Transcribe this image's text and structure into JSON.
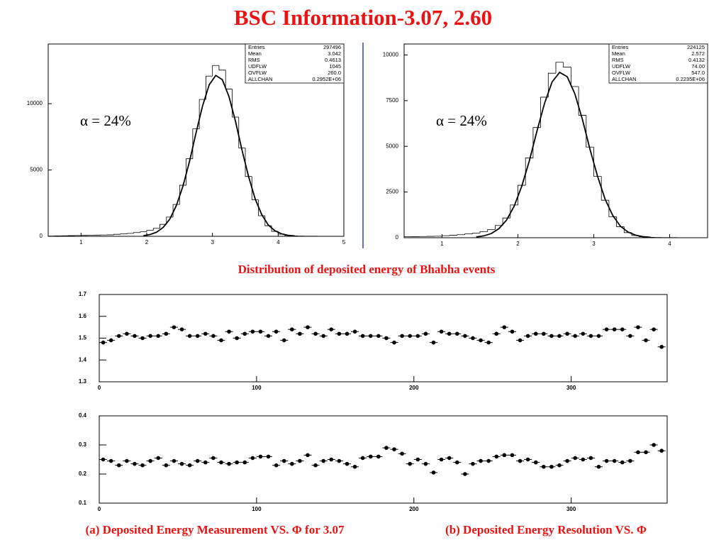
{
  "title": "BSC Information-3.07, 2.60",
  "captions": [
    "Distribution of deposited energy of Bhabha events",
    "(a) Deposited Energy Measurement VS. Φ for 3.07",
    "(b) Deposited Energy Resolution VS. Φ"
  ],
  "chart_data": [
    {
      "type": "histogram",
      "annotation": "α = 24%",
      "color": "#000000",
      "xlim": [
        0.5,
        5
      ],
      "xticks": [
        1,
        2,
        3,
        4,
        5
      ],
      "ylim": [
        0,
        14500
      ],
      "yticks": [
        0,
        5000,
        10000
      ],
      "bins": [
        0.5,
        0.6,
        0.7,
        0.8,
        0.9,
        1.0,
        1.1,
        1.2,
        1.3,
        1.4,
        1.5,
        1.6,
        1.7,
        1.8,
        1.9,
        2.0,
        2.1,
        2.2,
        2.3,
        2.4,
        2.5,
        2.6,
        2.7,
        2.8,
        2.9,
        3.0,
        3.1,
        3.2,
        3.3,
        3.4,
        3.5,
        3.6,
        3.7,
        3.8,
        3.9,
        4.0,
        4.1,
        4.2,
        4.3,
        4.4,
        4.5,
        4.6,
        4.7,
        4.8,
        4.9,
        5.0
      ],
      "counts": [
        20,
        30,
        40,
        50,
        60,
        70,
        80,
        90,
        100,
        110,
        150,
        180,
        220,
        280,
        340,
        450,
        600,
        900,
        1450,
        2400,
        3850,
        5850,
        8100,
        10320,
        12080,
        12880,
        12530,
        11100,
        8990,
        6660,
        4510,
        2750,
        1550,
        800,
        370,
        160,
        70,
        30,
        20,
        15,
        10,
        8,
        5,
        3,
        2
      ],
      "fit": {
        "x": [
          1.95,
          2.05,
          2.15,
          2.25,
          2.35,
          2.45,
          2.55,
          2.65,
          2.75,
          2.85,
          2.95,
          3.05,
          3.15,
          3.25,
          3.35,
          3.45,
          3.55,
          3.65,
          3.75,
          3.85,
          3.95,
          4.05,
          4.15,
          4.25
        ],
        "y": [
          55,
          135,
          310,
          670,
          1290,
          2310,
          3770,
          5630,
          7800,
          9840,
          11420,
          12130,
          11810,
          10560,
          8680,
          6490,
          4500,
          2820,
          1640,
          850,
          425,
          190,
          75,
          30
        ]
      },
      "stats": [
        {
          "label": "Entries",
          "value": "297496"
        },
        {
          "label": "Mean",
          "value": "3.042"
        },
        {
          "label": "RMS",
          "value": "0.4613"
        },
        {
          "label": "UDFLW",
          "value": "1045"
        },
        {
          "label": "OVFLW",
          "value": "260.0"
        },
        {
          "label": "ALLCHAN",
          "value": "0.2952E+06"
        }
      ]
    },
    {
      "type": "histogram",
      "annotation": "α = 24%",
      "color": "#000000",
      "xlim": [
        0.5,
        4.5
      ],
      "xticks": [
        1,
        2,
        3,
        4
      ],
      "ylim": [
        0,
        10600
      ],
      "yticks": [
        0,
        2500,
        5000,
        7500,
        10000
      ],
      "bins": [
        0.5,
        0.6,
        0.7,
        0.8,
        0.9,
        1.0,
        1.1,
        1.2,
        1.3,
        1.4,
        1.5,
        1.6,
        1.7,
        1.8,
        1.9,
        2.0,
        2.1,
        2.2,
        2.3,
        2.4,
        2.5,
        2.6,
        2.7,
        2.8,
        2.9,
        3.0,
        3.1,
        3.2,
        3.3,
        3.4,
        3.5,
        3.6,
        3.7,
        3.8,
        3.9,
        4.0,
        4.1,
        4.2,
        4.3,
        4.4,
        4.5
      ],
      "counts": [
        52,
        60,
        67,
        75,
        82,
        112,
        134,
        164,
        209,
        253,
        335,
        447,
        670,
        1080,
        1790,
        2870,
        4360,
        6030,
        7690,
        9000,
        9600,
        9330,
        8270,
        6700,
        4960,
        3360,
        2050,
        1150,
        600,
        280,
        120,
        52,
        22,
        15,
        11,
        8,
        6,
        4,
        2,
        1
      ],
      "fit": {
        "x": [
          1.45,
          1.55,
          1.65,
          1.75,
          1.85,
          1.95,
          2.05,
          2.15,
          2.25,
          2.35,
          2.45,
          2.55,
          2.65,
          2.75,
          2.85,
          2.95,
          3.05,
          3.15,
          3.25,
          3.35,
          3.45,
          3.55,
          3.65,
          3.75
        ],
        "y": [
          41,
          100,
          231,
          500,
          962,
          1720,
          2810,
          4200,
          5820,
          7340,
          8520,
          9050,
          8810,
          7880,
          6480,
          4840,
          3360,
          2100,
          1220,
          634,
          317,
          142,
          56,
          22
        ]
      },
      "stats": [
        {
          "label": "Entries",
          "value": "224125"
        },
        {
          "label": "Mean",
          "value": "2.572"
        },
        {
          "label": "RMS",
          "value": "0.4132"
        },
        {
          "label": "UDFLW",
          "value": "74.00"
        },
        {
          "label": "OVFLW",
          "value": "547.0"
        },
        {
          "label": "ALLCHAN",
          "value": "0.2235E+06"
        }
      ]
    },
    {
      "type": "scatter",
      "color": "#000000",
      "xlim": [
        0,
        361
      ],
      "xticks": [
        0,
        100,
        200,
        300
      ],
      "ylim": [
        1.3,
        1.7
      ],
      "yticks": [
        1.3,
        1.4,
        1.5,
        1.6,
        1.7
      ],
      "xerr": 2.5,
      "x": [
        2.5,
        7.5,
        12.5,
        17.5,
        22.5,
        27.5,
        32.5,
        37.5,
        42.5,
        47.5,
        52.5,
        57.5,
        62.5,
        67.5,
        72.5,
        77.5,
        82.5,
        87.5,
        92.5,
        97.5,
        102.5,
        107.5,
        112.5,
        117.5,
        122.5,
        127.5,
        132.5,
        137.5,
        142.5,
        147.5,
        152.5,
        157.5,
        162.5,
        167.5,
        172.5,
        177.5,
        182.5,
        187.5,
        192.5,
        197.5,
        202.5,
        207.5,
        212.5,
        217.5,
        222.5,
        227.5,
        232.5,
        237.5,
        242.5,
        247.5,
        252.5,
        257.5,
        262.5,
        267.5,
        272.5,
        277.5,
        282.5,
        287.5,
        292.5,
        297.5,
        302.5,
        307.5,
        312.5,
        317.5,
        322.5,
        327.5,
        332.5,
        337.5,
        342.5,
        347.5,
        352.5,
        357.5
      ],
      "values": [
        1.48,
        1.49,
        1.51,
        1.52,
        1.51,
        1.5,
        1.51,
        1.51,
        1.52,
        1.55,
        1.54,
        1.51,
        1.51,
        1.52,
        1.51,
        1.49,
        1.53,
        1.5,
        1.52,
        1.53,
        1.53,
        1.51,
        1.53,
        1.49,
        1.54,
        1.52,
        1.55,
        1.52,
        1.51,
        1.54,
        1.52,
        1.52,
        1.53,
        1.51,
        1.51,
        1.51,
        1.5,
        1.48,
        1.51,
        1.51,
        1.51,
        1.52,
        1.48,
        1.53,
        1.52,
        1.52,
        1.51,
        1.5,
        1.49,
        1.48,
        1.52,
        1.55,
        1.53,
        1.49,
        1.51,
        1.52,
        1.52,
        1.51,
        1.51,
        1.52,
        1.51,
        1.52,
        1.51,
        1.51,
        1.54,
        1.54,
        1.54,
        1.51,
        1.55,
        1.49,
        1.54,
        1.46
      ]
    },
    {
      "type": "scatter",
      "color": "#000000",
      "xlim": [
        0,
        361
      ],
      "xticks": [
        0,
        100,
        200,
        300
      ],
      "ylim": [
        0.1,
        0.4
      ],
      "yticks": [
        0.1,
        0.2,
        0.3,
        0.4
      ],
      "xerr": 2.5,
      "x": [
        2.5,
        7.5,
        12.5,
        17.5,
        22.5,
        27.5,
        32.5,
        37.5,
        42.5,
        47.5,
        52.5,
        57.5,
        62.5,
        67.5,
        72.5,
        77.5,
        82.5,
        87.5,
        92.5,
        97.5,
        102.5,
        107.5,
        112.5,
        117.5,
        122.5,
        127.5,
        132.5,
        137.5,
        142.5,
        147.5,
        152.5,
        157.5,
        162.5,
        167.5,
        172.5,
        177.5,
        182.5,
        187.5,
        192.5,
        197.5,
        202.5,
        207.5,
        212.5,
        217.5,
        222.5,
        227.5,
        232.5,
        237.5,
        242.5,
        247.5,
        252.5,
        257.5,
        262.5,
        267.5,
        272.5,
        277.5,
        282.5,
        287.5,
        292.5,
        297.5,
        302.5,
        307.5,
        312.5,
        317.5,
        322.5,
        327.5,
        332.5,
        337.5,
        342.5,
        347.5,
        352.5,
        357.5
      ],
      "values": [
        0.25,
        0.245,
        0.23,
        0.245,
        0.235,
        0.23,
        0.245,
        0.255,
        0.23,
        0.245,
        0.235,
        0.23,
        0.245,
        0.24,
        0.255,
        0.24,
        0.235,
        0.24,
        0.24,
        0.255,
        0.26,
        0.26,
        0.23,
        0.245,
        0.235,
        0.245,
        0.265,
        0.23,
        0.245,
        0.25,
        0.245,
        0.235,
        0.225,
        0.255,
        0.26,
        0.26,
        0.29,
        0.285,
        0.27,
        0.235,
        0.25,
        0.235,
        0.205,
        0.25,
        0.255,
        0.24,
        0.2,
        0.235,
        0.245,
        0.245,
        0.26,
        0.265,
        0.265,
        0.245,
        0.25,
        0.24,
        0.225,
        0.225,
        0.23,
        0.245,
        0.255,
        0.25,
        0.255,
        0.225,
        0.245,
        0.245,
        0.24,
        0.245,
        0.275,
        0.275,
        0.3,
        0.28
      ]
    }
  ]
}
